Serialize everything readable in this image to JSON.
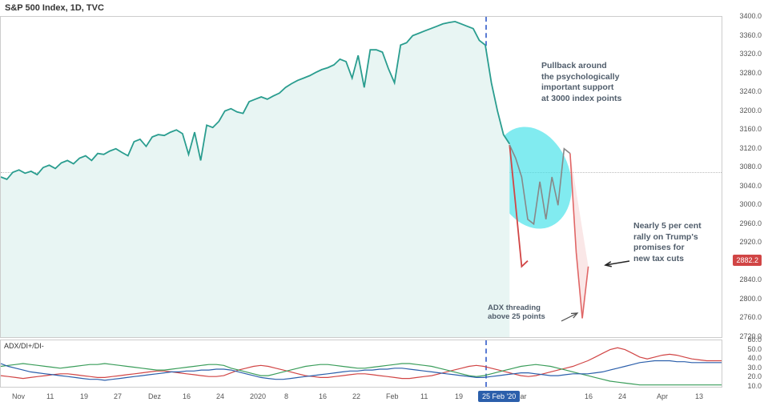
{
  "title": "S&P 500 Index, 1D, TVC",
  "sub_indicator_label": "ADX/DI+/DI-",
  "annotations": {
    "pullback": "Pullback around\nthe psychologically\nimportant support\nat 3000 index points",
    "rally": "Nearly 5 per cent\nrally on Trump's\npromises for\nnew tax cuts",
    "adx": "ADX threading\nabove 25 points"
  },
  "main_chart": {
    "type": "line-area",
    "ylim": [
      2720,
      3400
    ],
    "ytick_step": 40,
    "current_price": 2882.2,
    "dashed_baseline": 3070,
    "vline_date_index": 80,
    "colors": {
      "main_line": "#2a9d8f",
      "area_fill": "#e8f5f3",
      "projection_line": "#888",
      "drop_line": "#e06666",
      "rally_line": "#e06666",
      "continuation_line": "#d14545",
      "background": "#ffffff",
      "grid": "#ccc",
      "vline": "#5a7bd4",
      "highlight": "#3de0e8",
      "baseline": "#bbb"
    },
    "title_fontsize": 11,
    "label_fontsize": 9,
    "main_series": [
      3060,
      3055,
      3070,
      3075,
      3068,
      3072,
      3065,
      3080,
      3085,
      3078,
      3090,
      3095,
      3088,
      3100,
      3105,
      3095,
      3110,
      3108,
      3115,
      3120,
      3112,
      3105,
      3135,
      3140,
      3125,
      3145,
      3150,
      3148,
      3155,
      3160,
      3152,
      3108,
      3155,
      3095,
      3170,
      3165,
      3178,
      3200,
      3205,
      3198,
      3195,
      3220,
      3225,
      3230,
      3225,
      3232,
      3238,
      3250,
      3258,
      3265,
      3270,
      3275,
      3282,
      3288,
      3292,
      3298,
      3310,
      3305,
      3270,
      3318,
      3250,
      3330,
      3330,
      3325,
      3290,
      3260,
      3340,
      3345,
      3360,
      3365,
      3370,
      3375,
      3380,
      3385,
      3388,
      3390,
      3385,
      3380,
      3375,
      3350,
      3340,
      3260,
      3200,
      3150,
      3130
    ],
    "projection_series": [
      3128,
      3100,
      3060,
      2970,
      2960,
      3050,
      2970,
      3060,
      3000,
      3120,
      3110
    ],
    "drop_series": [
      3110,
      2900,
      2760
    ],
    "rally_series": [
      2760,
      2870
    ],
    "continuation": [
      3128,
      3000,
      2870,
      2882
    ]
  },
  "sub_chart": {
    "type": "line",
    "ylim": [
      10,
      60
    ],
    "yticks": [
      10,
      20,
      30,
      40,
      50,
      60
    ],
    "colors": {
      "adx": "#2b5fab",
      "di_plus": "#3a9d5a",
      "di_minus": "#d14545",
      "background": "#ffffff"
    },
    "adx": [
      35,
      32,
      30,
      28,
      26,
      25,
      24,
      23,
      22,
      21,
      20,
      19,
      18,
      18,
      17,
      18,
      19,
      20,
      21,
      22,
      23,
      24,
      25,
      26,
      26,
      27,
      27,
      28,
      28,
      29,
      29,
      28,
      26,
      24,
      22,
      20,
      19,
      18,
      18,
      19,
      20,
      21,
      22,
      23,
      24,
      25,
      26,
      27,
      27,
      28,
      28,
      29,
      29,
      30,
      30,
      29,
      28,
      27,
      26,
      25,
      24,
      23,
      22,
      21,
      20,
      20,
      21,
      22,
      23,
      24,
      25,
      25,
      24,
      23,
      22,
      22,
      23,
      24,
      24,
      24,
      25,
      26,
      28,
      30,
      32,
      34,
      36,
      37,
      38,
      38,
      38,
      37,
      37,
      36,
      36,
      36,
      36,
      36
    ],
    "di_plus": [
      32,
      33,
      34,
      35,
      34,
      33,
      32,
      31,
      30,
      31,
      32,
      33,
      34,
      34,
      35,
      34,
      33,
      32,
      31,
      30,
      29,
      28,
      28,
      29,
      30,
      31,
      32,
      33,
      34,
      34,
      33,
      30,
      28,
      26,
      24,
      22,
      22,
      24,
      26,
      28,
      30,
      32,
      33,
      34,
      34,
      33,
      32,
      31,
      30,
      30,
      31,
      32,
      33,
      34,
      35,
      35,
      34,
      33,
      32,
      30,
      28,
      26,
      24,
      22,
      21,
      22,
      24,
      26,
      28,
      30,
      32,
      33,
      34,
      33,
      32,
      30,
      28,
      26,
      24,
      22,
      20,
      18,
      16,
      15,
      14,
      13,
      12,
      12,
      12,
      12,
      12,
      12,
      12,
      12,
      12,
      12,
      12,
      12
    ],
    "di_minus": [
      22,
      21,
      20,
      19,
      20,
      21,
      22,
      23,
      24,
      24,
      23,
      22,
      21,
      20,
      20,
      21,
      22,
      23,
      24,
      25,
      26,
      27,
      27,
      26,
      25,
      24,
      23,
      22,
      21,
      21,
      22,
      25,
      28,
      30,
      32,
      33,
      32,
      30,
      28,
      26,
      24,
      22,
      21,
      20,
      20,
      21,
      22,
      23,
      24,
      24,
      23,
      22,
      21,
      20,
      19,
      19,
      20,
      21,
      22,
      24,
      26,
      28,
      30,
      32,
      33,
      32,
      30,
      28,
      26,
      24,
      22,
      21,
      22,
      24,
      26,
      28,
      30,
      32,
      35,
      38,
      42,
      46,
      50,
      52,
      50,
      46,
      42,
      40,
      42,
      44,
      45,
      44,
      42,
      40,
      39,
      38,
      38,
      38
    ]
  },
  "x_axis": {
    "labels": [
      "Nov",
      "11",
      "19",
      "27",
      "Dez",
      "16",
      "24",
      "2020",
      "8",
      "16",
      "22",
      "Feb",
      "11",
      "19",
      "Mar",
      "16",
      "24",
      "Apr",
      "13"
    ],
    "positions": [
      15,
      58,
      100,
      142,
      185,
      228,
      270,
      312,
      355,
      398,
      440,
      482,
      525,
      568,
      642,
      730,
      772,
      820,
      868
    ],
    "highlight_label": "25 Feb '20",
    "highlight_pos": 597
  },
  "y_axis_main": {
    "labels": [
      "3400.0",
      "3360.0",
      "3320.0",
      "3280.0",
      "3240.0",
      "3200.0",
      "3160.0",
      "3120.0",
      "3080.0",
      "3040.0",
      "3000.0",
      "2960.0",
      "2920.0",
      "2880.0",
      "2840.0",
      "2800.0",
      "2760.0",
      "2720.0"
    ]
  }
}
